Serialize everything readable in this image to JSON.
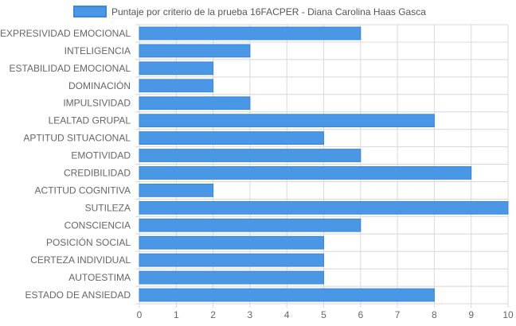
{
  "chart_data": {
    "type": "bar",
    "orientation": "horizontal",
    "title": "",
    "legend": {
      "position": "top-center",
      "entries": [
        "Puntaje por criterio de la prueba 16FACPER - Diana Carolina Haas Gasca"
      ]
    },
    "categories": [
      "EXPRESIVIDAD EMOCIONAL",
      "INTELIGENCIA",
      "ESTABILIDAD EMOCIONAL",
      "DOMINACIÓN",
      "IMPULSIVIDAD",
      "LEALTAD GRUPAL",
      "APTITUD SITUACIONAL",
      "EMOTIVIDAD",
      "CREDIBILIDAD",
      "ACTITUD COGNITIVA",
      "SUTILEZA",
      "CONSCIENCIA",
      "POSICIÓN SOCIAL",
      "CERTEZA INDIVIDUAL",
      "AUTOESTIMA",
      "ESTADO DE ANSIEDAD"
    ],
    "series": [
      {
        "name": "Puntaje por criterio de la prueba 16FACPER - Diana Carolina Haas Gasca",
        "values": [
          6,
          3,
          2,
          2,
          3,
          8,
          5,
          6,
          9,
          2,
          10,
          6,
          5,
          5,
          5,
          8
        ],
        "color": "#4a97e6"
      }
    ],
    "xlim": [
      0,
      10
    ],
    "xticks": [
      "0",
      "1",
      "2",
      "3",
      "4",
      "5",
      "6",
      "7",
      "8",
      "9",
      "10"
    ],
    "xlabel": "",
    "ylabel": "",
    "grid": true
  },
  "colors": {
    "bar_fill": "#4a97e6",
    "bar_stroke": "#3a86dc",
    "grid": "#d8d8d8",
    "text": "#666666"
  }
}
